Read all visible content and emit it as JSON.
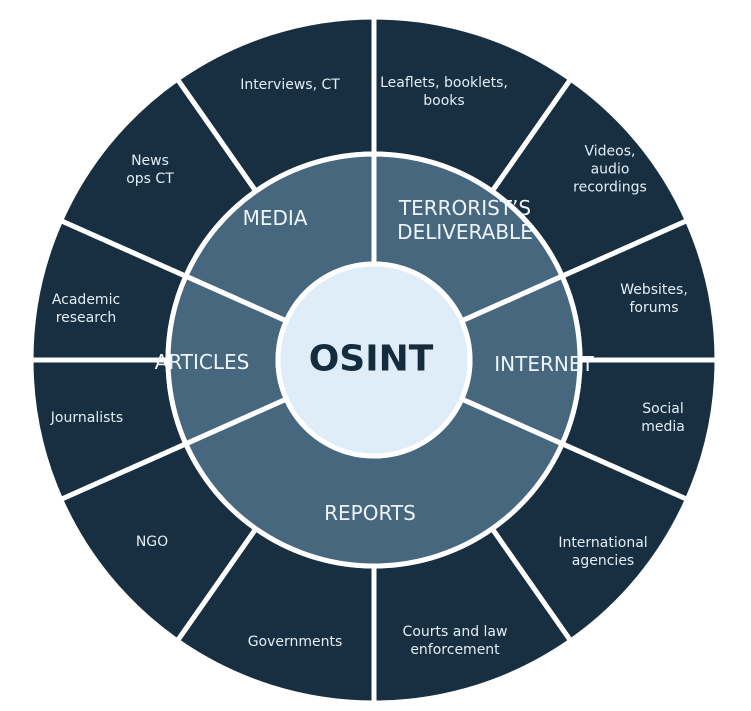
{
  "center": {
    "label": "OSINT"
  },
  "categories": [
    {
      "label": "MEDIA"
    },
    {
      "label": "TERRORIST’S\nDELIVERABLE"
    },
    {
      "label": "INTERNET"
    },
    {
      "label": "REPORTS"
    },
    {
      "label": "ARTICLES"
    }
  ],
  "sources": [
    {
      "label": "Interviews, CT"
    },
    {
      "label": "Leaflets, booklets,\nbooks"
    },
    {
      "label": "Videos,\naudio\nrecordings"
    },
    {
      "label": "Websites,\nforums"
    },
    {
      "label": "Social\nmedia"
    },
    {
      "label": "International\nagencies"
    },
    {
      "label": "Courts and law\nenforcement"
    },
    {
      "label": "Governments"
    },
    {
      "label": "NGO"
    },
    {
      "label": "Journalists"
    },
    {
      "label": "Academic\nresearch"
    },
    {
      "label": "News\nops CT"
    }
  ],
  "colors": {
    "outer": "#172f40",
    "middle": "#47677e",
    "center": "#deedf8",
    "separator": "#ffffff"
  }
}
